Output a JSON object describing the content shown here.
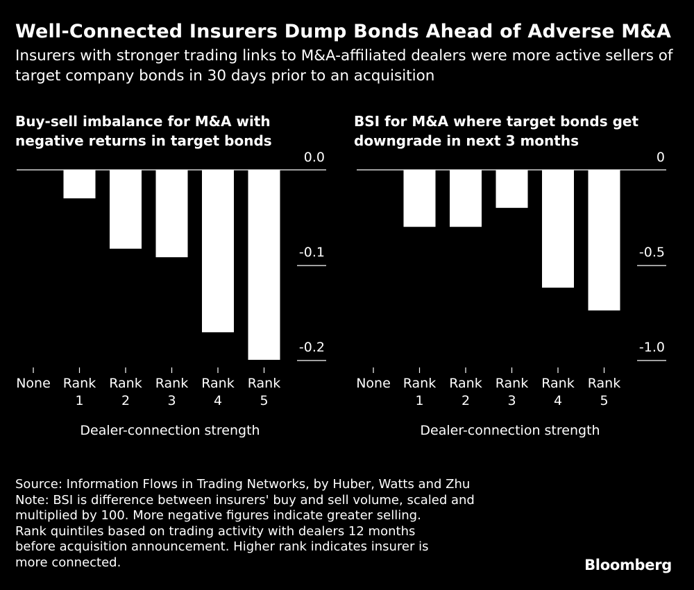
{
  "title": "Well-Connected Insurers Dump Bonds Ahead of Adverse M&A",
  "subtitle": "Insurers with stronger trading links to M&A-affiliated dealers were more active sellers of target company bonds in 30 days prior to an acquisition",
  "chart_data": [
    {
      "type": "bar",
      "title": "Buy-sell imbalance for M&A with negative returns in target bonds",
      "categories": [
        [
          "None"
        ],
        [
          "Rank",
          "1"
        ],
        [
          "Rank",
          "2"
        ],
        [
          "Rank",
          "3"
        ],
        [
          "Rank",
          "4"
        ],
        [
          "Rank",
          "5"
        ]
      ],
      "values": [
        0,
        -0.03,
        -0.083,
        -0.092,
        -0.171,
        -0.2
      ],
      "ylim": [
        -0.2,
        0
      ],
      "yticks": [
        0,
        -0.1,
        -0.2
      ],
      "ytick_labels": [
        "0.0",
        "-0.1",
        "-0.2"
      ],
      "xlabel": "Dealer-connection strength",
      "ylabel": ""
    },
    {
      "type": "bar",
      "title": "BSI for M&A where target bonds get downgrade in next 3 months",
      "categories": [
        [
          "None"
        ],
        [
          "Rank",
          "1"
        ],
        [
          "Rank",
          "2"
        ],
        [
          "Rank",
          "3"
        ],
        [
          "Rank",
          "4"
        ],
        [
          "Rank",
          "5"
        ]
      ],
      "values": [
        0,
        -0.3,
        -0.3,
        -0.2,
        -0.62,
        -0.74
      ],
      "ylim": [
        -1.0,
        0
      ],
      "yticks": [
        0,
        -0.5,
        -1.0
      ],
      "ytick_labels": [
        "0",
        "-0.5",
        "-1.0"
      ],
      "xlabel": "Dealer-connection strength",
      "ylabel": ""
    }
  ],
  "footer": {
    "source": "Source: Information Flows in Trading Networks, by Huber, Watts and Zhu",
    "note_lines": [
      "Note: BSI is difference between insurers' buy and sell volume, scaled and",
      "multiplied by 100. More negative figures indicate greater selling.",
      "Rank quintiles based on trading activity with dealers 12 months",
      "before acquisition announcement. Higher rank indicates insurer is",
      "more connected."
    ]
  },
  "brand": "Bloomberg",
  "colors": {
    "background": "#000000",
    "foreground": "#ffffff"
  }
}
